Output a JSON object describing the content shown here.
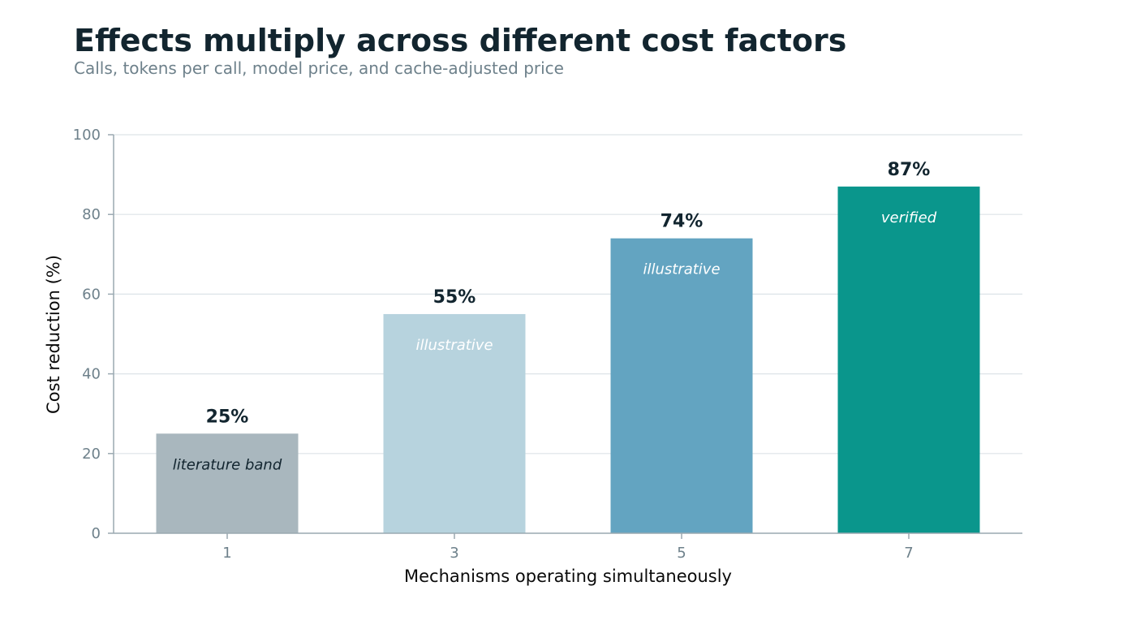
{
  "title": "Effects multiply across different cost factors",
  "subtitle": "Calls, tokens per call, model price, and cache-adjusted price",
  "chart_data": {
    "type": "bar",
    "title": "Effects multiply across different cost factors",
    "subtitle": "Calls, tokens per call, model price, and cache-adjusted price",
    "xlabel": "Mechanisms operating simultaneously",
    "ylabel": "Cost reduction (%)",
    "categories": [
      "1",
      "3",
      "5",
      "7"
    ],
    "values": [
      25,
      55,
      74,
      87
    ],
    "value_labels": [
      "25%",
      "55%",
      "74%",
      "87%"
    ],
    "annotations": [
      "literature band",
      "illustrative",
      "illustrative",
      "verified"
    ],
    "colors": [
      "#a9b7be",
      "#b7d3de",
      "#63a4c1",
      "#0a968c"
    ],
    "annotation_colors": [
      "#12252f",
      "#ffffff",
      "#ffffff",
      "#ffffff"
    ],
    "ylim": [
      0,
      100
    ],
    "yticks": [
      0,
      20,
      40,
      60,
      80,
      100
    ],
    "grid": true,
    "legend": "none"
  }
}
